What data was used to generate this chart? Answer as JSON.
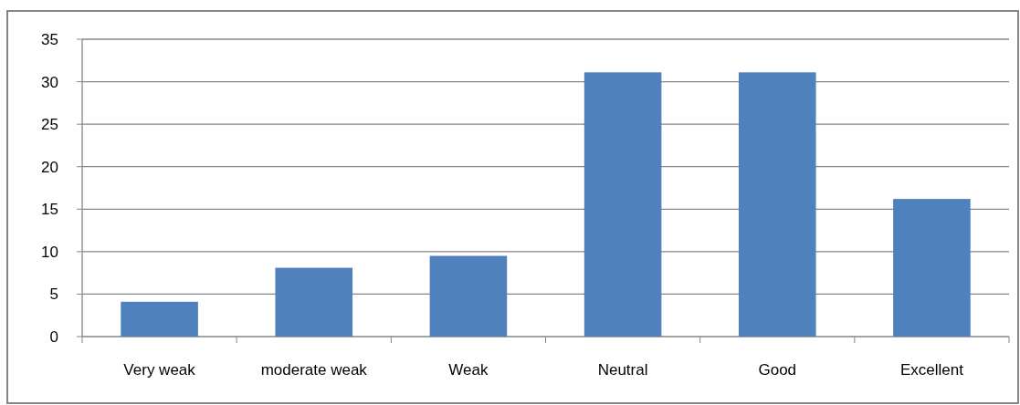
{
  "chart_data": {
    "type": "bar",
    "categories": [
      "Very weak",
      "moderate weak",
      "Weak",
      "Neutral",
      "Good",
      "Excellent"
    ],
    "values": [
      4.1,
      8.1,
      9.5,
      31.1,
      31.1,
      16.2
    ],
    "color": "#4f81bd",
    "ylim": [
      0,
      35
    ],
    "yticks": [
      0,
      5,
      10,
      15,
      20,
      25,
      30,
      35
    ],
    "grid": "y"
  }
}
